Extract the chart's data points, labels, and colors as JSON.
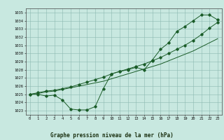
{
  "title": "Graphe pression niveau de la mer (hPa)",
  "bg_color": "#c8e8e0",
  "grid_color": "#8cb8b0",
  "line_color": "#1a5c28",
  "marker_color": "#1a5c28",
  "x_labels": [
    "0",
    "1",
    "2",
    "3",
    "4",
    "5",
    "6",
    "7",
    "8",
    "9",
    "10",
    "11",
    "12",
    "13",
    "14",
    "15",
    "16",
    "17",
    "18",
    "19",
    "20",
    "21",
    "22",
    "23"
  ],
  "ylim": [
    1022.5,
    1035.5
  ],
  "yticks": [
    1023,
    1024,
    1025,
    1026,
    1027,
    1028,
    1029,
    1030,
    1031,
    1032,
    1033,
    1034,
    1035
  ],
  "series1_x": [
    0,
    1,
    2,
    3,
    4,
    5,
    6,
    7,
    8,
    9,
    10,
    11,
    12,
    13,
    14,
    15,
    16,
    17,
    18,
    19,
    20,
    21,
    22,
    23
  ],
  "series1_y": [
    1025.0,
    1025.0,
    1024.8,
    1024.9,
    1024.3,
    1023.2,
    1023.1,
    1023.1,
    1023.5,
    1025.7,
    1027.5,
    1027.8,
    1028.0,
    1028.3,
    1028.0,
    1029.2,
    1030.5,
    1031.3,
    1032.7,
    1033.3,
    1034.0,
    1034.7,
    1034.7,
    1034.1
  ],
  "series2_x": [
    0,
    1,
    2,
    3,
    4,
    5,
    6,
    7,
    8,
    9,
    10,
    11,
    12,
    13,
    14,
    15,
    16,
    17,
    18,
    19,
    20,
    21,
    22,
    23
  ],
  "series2_y": [
    1025.0,
    1025.2,
    1025.4,
    1025.5,
    1025.7,
    1025.9,
    1026.2,
    1026.5,
    1026.8,
    1027.1,
    1027.5,
    1027.8,
    1028.1,
    1028.4,
    1028.7,
    1029.1,
    1029.5,
    1030.0,
    1030.5,
    1031.0,
    1031.6,
    1032.3,
    1033.1,
    1033.8
  ],
  "series3_x": [
    0,
    1,
    2,
    3,
    4,
    5,
    6,
    7,
    8,
    9,
    10,
    11,
    12,
    13,
    14,
    15,
    16,
    17,
    18,
    19,
    20,
    21,
    22,
    23
  ],
  "series3_y": [
    1025.0,
    1025.1,
    1025.3,
    1025.4,
    1025.6,
    1025.8,
    1026.0,
    1026.2,
    1026.4,
    1026.6,
    1026.9,
    1027.2,
    1027.5,
    1027.8,
    1028.1,
    1028.4,
    1028.7,
    1029.1,
    1029.5,
    1029.9,
    1030.3,
    1030.8,
    1031.3,
    1031.8
  ]
}
